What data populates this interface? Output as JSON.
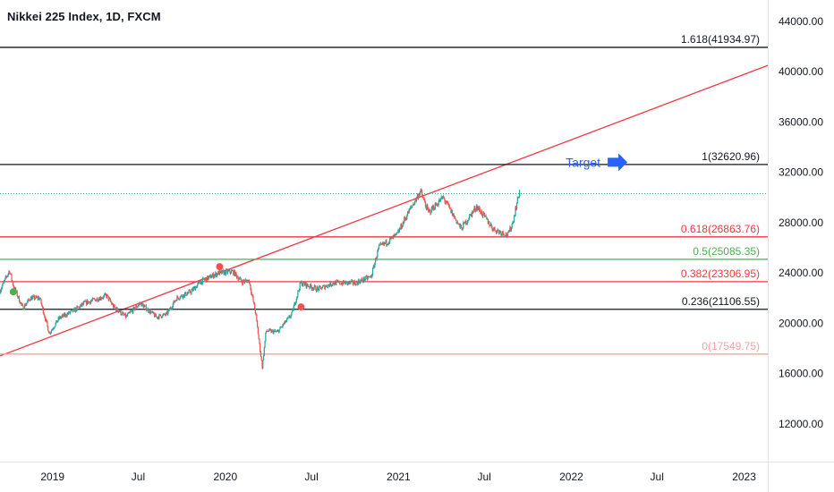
{
  "header": {
    "title": "Nikkei 225 Index, 1D, FXCM"
  },
  "colors": {
    "up": "#26a69a",
    "down": "#ef5350",
    "trendline": "#f23645",
    "black_line": "#131722",
    "green_line": "#4caf50",
    "pink_line": "#f7a1a3",
    "target": "#2962ff",
    "last_price": "#26a69a"
  },
  "annotation": {
    "label": "Target",
    "icon": "arrow-right-icon"
  },
  "chart_data": {
    "type": "candlestick",
    "title": "Nikkei 225 Index, 1D, FXCM",
    "x_ticks": [
      "2019",
      "Jul",
      "2020",
      "Jul",
      "2021",
      "Jul",
      "2022",
      "Jul",
      "2023"
    ],
    "x_tick_dates": [
      "2019-01-01",
      "2019-07-01",
      "2020-01-01",
      "2020-07-01",
      "2021-01-01",
      "2021-07-01",
      "2022-01-01",
      "2022-07-01",
      "2023-01-01"
    ],
    "y_ticks": [
      "12000.00",
      "16000.00",
      "20000.00",
      "24000.00",
      "28000.00",
      "32000.00",
      "36000.00",
      "40000.00",
      "44000.00"
    ],
    "y_tick_values": [
      12000,
      16000,
      20000,
      24000,
      28000,
      32000,
      36000,
      40000,
      44000
    ],
    "ylim": [
      9000,
      45700
    ],
    "xlim": [
      "2018-09-12",
      "2023-02-20"
    ],
    "last_price": 30300,
    "fib_levels": [
      {
        "label": "1.618(41934.97)",
        "value": 41934.97,
        "line_color": "#131722",
        "text_color": "#131722"
      },
      {
        "label": "1(32620.96)",
        "value": 32620.96,
        "line_color": "#131722",
        "text_color": "#131722"
      },
      {
        "label": "0.618(26863.76)",
        "value": 26863.76,
        "line_color": "#f23645",
        "text_color": "#f23645"
      },
      {
        "label": "0.5(25085.35)",
        "value": 25085.35,
        "line_color": "#4caf50",
        "text_color": "#4caf50"
      },
      {
        "label": "0.382(23306.95)",
        "value": 23306.95,
        "line_color": "#f23645",
        "text_color": "#f23645"
      },
      {
        "label": "0.236(21106.55)",
        "value": 21106.55,
        "line_color": "#131722",
        "text_color": "#131722"
      },
      {
        "label": "0(17549.75)",
        "value": 17549.75,
        "line_color": "#f7a1a3",
        "text_color": "#f7a1a3"
      }
    ],
    "trendline": {
      "start": [
        "2018-09-12",
        17400
      ],
      "end": [
        "2023-02-20",
        40500
      ]
    },
    "markers": [
      {
        "date": "2018-10-10",
        "value": 22500,
        "color": "#4caf50"
      },
      {
        "date": "2019-12-20",
        "value": 24500,
        "color": "#ef5350"
      },
      {
        "date": "2020-06-09",
        "value": 21300,
        "color": "#ef5350"
      }
    ],
    "target_date": "2022-03-15",
    "target_value": 32800,
    "price_path": [
      [
        "2018-09-12",
        22600
      ],
      [
        "2018-10-02",
        24200
      ],
      [
        "2018-10-10",
        23000
      ],
      [
        "2018-10-30",
        21200
      ],
      [
        "2018-11-15",
        22000
      ],
      [
        "2018-12-05",
        22000
      ],
      [
        "2018-12-25",
        19200
      ],
      [
        "2019-01-15",
        20400
      ],
      [
        "2019-02-15",
        21000
      ],
      [
        "2019-03-10",
        21600
      ],
      [
        "2019-04-25",
        22200
      ],
      [
        "2019-05-10",
        21300
      ],
      [
        "2019-06-05",
        20500
      ],
      [
        "2019-07-05",
        21600
      ],
      [
        "2019-08-08",
        20500
      ],
      [
        "2019-08-30",
        20700
      ],
      [
        "2019-09-20",
        22000
      ],
      [
        "2019-10-20",
        22500
      ],
      [
        "2019-11-10",
        23300
      ],
      [
        "2019-12-17",
        24000
      ],
      [
        "2020-01-17",
        24100
      ],
      [
        "2020-02-05",
        23300
      ],
      [
        "2020-02-20",
        23400
      ],
      [
        "2020-03-05",
        20800
      ],
      [
        "2020-03-19",
        16500
      ],
      [
        "2020-03-27",
        19400
      ],
      [
        "2020-04-20",
        19300
      ],
      [
        "2020-05-20",
        20700
      ],
      [
        "2020-06-08",
        23200
      ],
      [
        "2020-07-15",
        22700
      ],
      [
        "2020-08-15",
        23200
      ],
      [
        "2020-10-01",
        23200
      ],
      [
        "2020-11-04",
        23700
      ],
      [
        "2020-11-20",
        26000
      ],
      [
        "2020-12-28",
        27000
      ],
      [
        "2021-01-20",
        28700
      ],
      [
        "2021-02-16",
        30500
      ],
      [
        "2021-03-05",
        28800
      ],
      [
        "2021-04-05",
        30000
      ],
      [
        "2021-05-13",
        27500
      ],
      [
        "2021-06-15",
        29300
      ],
      [
        "2021-07-20",
        27500
      ],
      [
        "2021-08-20",
        27000
      ],
      [
        "2021-08-30",
        28000
      ],
      [
        "2021-09-14",
        30600
      ]
    ]
  }
}
